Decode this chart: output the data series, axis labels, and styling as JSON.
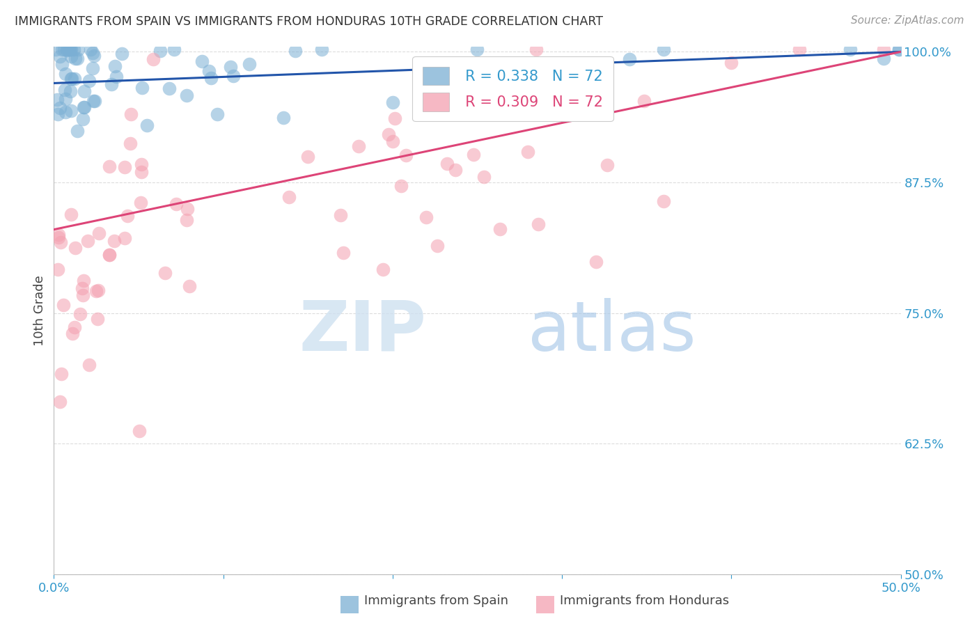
{
  "title": "IMMIGRANTS FROM SPAIN VS IMMIGRANTS FROM HONDURAS 10TH GRADE CORRELATION CHART",
  "source": "Source: ZipAtlas.com",
  "ylabel": "10th Grade",
  "legend_label_1": "Immigrants from Spain",
  "legend_label_2": "Immigrants from Honduras",
  "legend_r1": "R = 0.338",
  "legend_n1": "N = 72",
  "legend_r2": "R = 0.309",
  "legend_n2": "N = 72",
  "color_spain": "#7bafd4",
  "color_honduras": "#f4a0b0",
  "color_trend_spain": "#2255aa",
  "color_trend_honduras": "#dd4477",
  "xlim": [
    0.0,
    0.5
  ],
  "ylim": [
    0.5,
    1.005
  ],
  "xtick_positions": [
    0.0,
    0.1,
    0.2,
    0.3,
    0.4,
    0.5
  ],
  "xtick_labels": [
    "0.0%",
    "",
    "",
    "",
    "",
    "50.0%"
  ],
  "ytick_positions": [
    1.0,
    0.875,
    0.75,
    0.625,
    0.5
  ],
  "ytick_labels": [
    "100.0%",
    "87.5%",
    "75.0%",
    "62.5%",
    "50.0%"
  ],
  "trend_spain_y0": 0.97,
  "trend_spain_y1": 1.0,
  "trend_honduras_y0": 0.83,
  "trend_honduras_y1": 1.0,
  "background_color": "#ffffff",
  "grid_color": "#dddddd",
  "title_color": "#333333",
  "axis_color": "#bbbbbb",
  "tick_color": "#3399cc",
  "watermark_zip_color": "#ccdff0",
  "watermark_atlas_color": "#a8c8e8"
}
